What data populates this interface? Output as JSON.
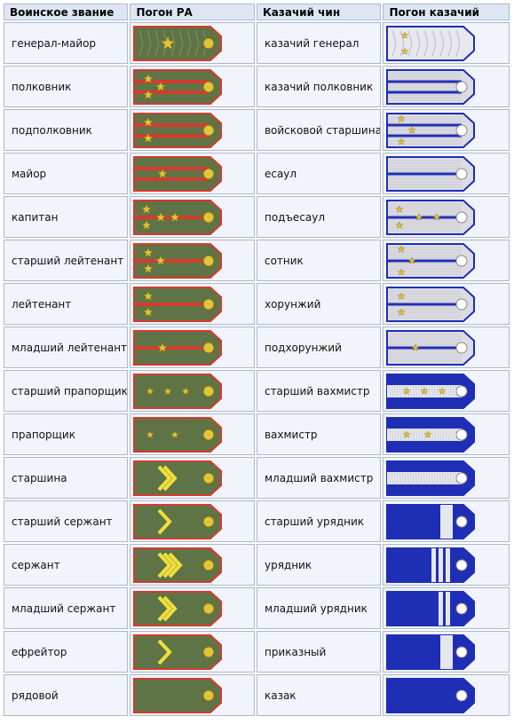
{
  "headers": [
    "Воинское звание",
    "Погон РА",
    "Казачий чин",
    "Погон казачий"
  ],
  "colors": {
    "header_bg": "#dfe6f3",
    "cell_bg": "#f1f5fb",
    "cell_border": "#aab7cf",
    "army_green": "#5f7446",
    "army_red": "#d63a2c",
    "star_gold": "#e0c43a",
    "cossack_blue": "#1f2fb5",
    "cossack_silver": "#dcdce2"
  },
  "rows": [
    {
      "army": "генерал-майор",
      "army_strap": {
        "kind": "general",
        "stars": 1
      },
      "cossack": "казачий генерал",
      "cossack_strap": {
        "kind": "c-general",
        "stars": 2
      }
    },
    {
      "army": "полковник",
      "army_strap": {
        "kind": "officer",
        "stripes": 2,
        "stars": 3
      },
      "cossack": "казачий полковник",
      "cossack_strap": {
        "kind": "c-officer",
        "stripes": 2,
        "stars": 0
      }
    },
    {
      "army": "подполковник",
      "army_strap": {
        "kind": "officer",
        "stripes": 2,
        "stars": 2
      },
      "cossack": "войсковой старшина",
      "cossack_strap": {
        "kind": "c-officer",
        "stripes": 2,
        "stars": 3
      }
    },
    {
      "army": "майор",
      "army_strap": {
        "kind": "officer",
        "stripes": 2,
        "stars": 1
      },
      "cossack": "есаул",
      "cossack_strap": {
        "kind": "c-officer",
        "stripes": 1,
        "stars": 0
      }
    },
    {
      "army": "капитан",
      "army_strap": {
        "kind": "officer",
        "stripes": 1,
        "stars": 4
      },
      "cossack": "подъесаул",
      "cossack_strap": {
        "kind": "c-officer",
        "stripes": 1,
        "stars": 4
      }
    },
    {
      "army": "старший лейтенант",
      "army_strap": {
        "kind": "officer",
        "stripes": 1,
        "stars": 3
      },
      "cossack": "сотник",
      "cossack_strap": {
        "kind": "c-officer",
        "stripes": 1,
        "stars": 3
      }
    },
    {
      "army": "лейтенант",
      "army_strap": {
        "kind": "officer",
        "stripes": 1,
        "stars": 2
      },
      "cossack": "хорунжий",
      "cossack_strap": {
        "kind": "c-officer",
        "stripes": 1,
        "stars": 2
      }
    },
    {
      "army": "младший лейтенант",
      "army_strap": {
        "kind": "officer",
        "stripes": 1,
        "stars": 1
      },
      "cossack": "подхорунжий",
      "cossack_strap": {
        "kind": "c-officer",
        "stripes": 1,
        "stars": 1
      }
    },
    {
      "army": "старший прапорщик",
      "army_strap": {
        "kind": "warrant",
        "stars": 3
      },
      "cossack": "старший вахмистр",
      "cossack_strap": {
        "kind": "c-warrant",
        "stars": 3
      }
    },
    {
      "army": "прапорщик",
      "army_strap": {
        "kind": "warrant",
        "stars": 2
      },
      "cossack": "вахмистр",
      "cossack_strap": {
        "kind": "c-warrant",
        "stars": 2
      }
    },
    {
      "army": "старшина",
      "army_strap": {
        "kind": "nco",
        "chevrons": 2
      },
      "cossack": "младший вахмистр",
      "cossack_strap": {
        "kind": "c-warrant",
        "stars": 0
      }
    },
    {
      "army": "старший сержант",
      "army_strap": {
        "kind": "nco",
        "chevrons": 1
      },
      "cossack": "старший урядник",
      "cossack_strap": {
        "kind": "c-nco",
        "bars": 1
      }
    },
    {
      "army": "сержант",
      "army_strap": {
        "kind": "nco",
        "chevrons": 3
      },
      "cossack": "урядник",
      "cossack_strap": {
        "kind": "c-nco",
        "bars": 3
      }
    },
    {
      "army": "младший сержант",
      "army_strap": {
        "kind": "nco",
        "chevrons": 2
      },
      "cossack": "младший урядник",
      "cossack_strap": {
        "kind": "c-nco",
        "bars": 2
      }
    },
    {
      "army": "ефрейтор",
      "army_strap": {
        "kind": "nco",
        "chevrons": 1
      },
      "cossack": "приказный",
      "cossack_strap": {
        "kind": "c-nco",
        "bars": 1
      }
    },
    {
      "army": "рядовой",
      "army_strap": {
        "kind": "nco",
        "chevrons": 0
      },
      "cossack": "казак",
      "cossack_strap": {
        "kind": "c-nco",
        "bars": 0
      }
    }
  ]
}
